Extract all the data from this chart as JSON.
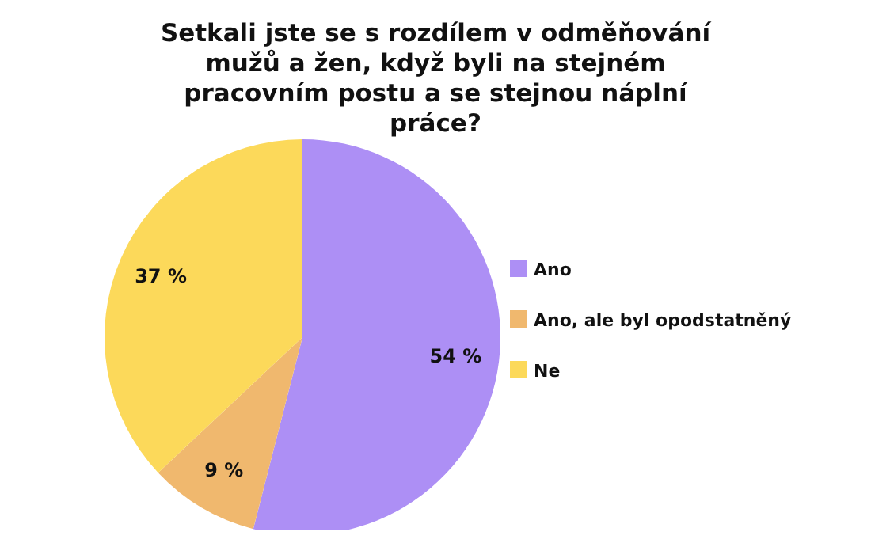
{
  "chart_data": {
    "type": "pie",
    "title": "Setkali jste se s rozdílem v odměňování mužů a žen, když byli na stejném pracovním postu a se stejnou náplní práce?",
    "categories": [
      "Ano",
      "Ano, ale byl opodstatněný",
      "Ne"
    ],
    "values": [
      54,
      9,
      37
    ],
    "colors": [
      "#ad8ff5",
      "#f0b86e",
      "#fcd95a"
    ],
    "value_labels": [
      "54 %",
      "9 %",
      "37 %"
    ],
    "legend": "right"
  }
}
